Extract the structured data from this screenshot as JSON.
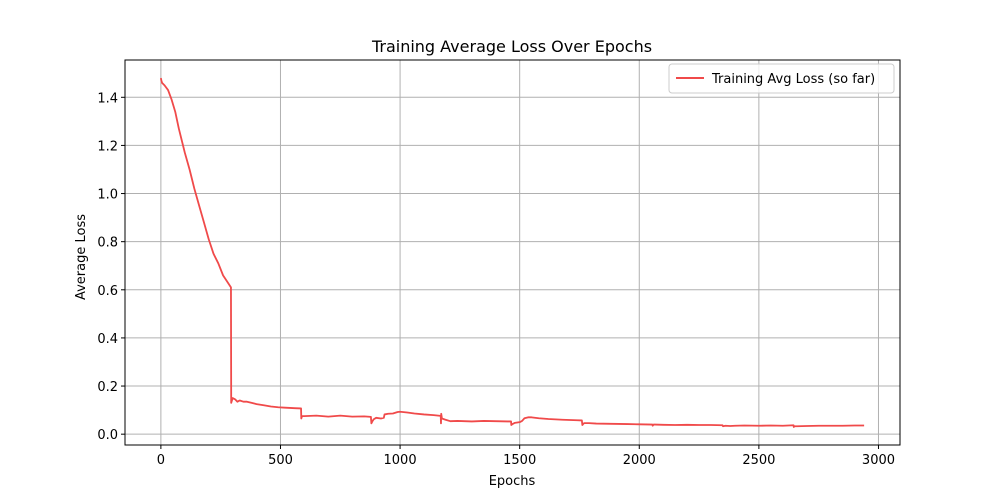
{
  "chart_data": {
    "type": "line",
    "title": "Training Average Loss Over Epochs",
    "xlabel": "Epochs",
    "ylabel": "Average Loss",
    "xlim": [
      -150,
      3090
    ],
    "ylim": [
      -0.045,
      1.555
    ],
    "xticks": [
      0,
      500,
      1000,
      1500,
      2000,
      2500,
      3000
    ],
    "yticks": [
      0.0,
      0.2,
      0.4,
      0.6,
      0.8,
      1.0,
      1.2,
      1.4
    ],
    "ytick_labels": [
      "0.0",
      "0.2",
      "0.4",
      "0.6",
      "0.8",
      "1.0",
      "1.2",
      "1.4"
    ],
    "grid": true,
    "legend_position": "top-right",
    "series": [
      {
        "name": "Training Avg Loss (so far)",
        "color": "#f04a4a",
        "x": [
          0,
          2,
          5,
          15,
          30,
          45,
          60,
          75,
          90,
          100,
          120,
          140,
          160,
          180,
          200,
          220,
          240,
          260,
          280,
          293,
          294,
          297,
          300,
          310,
          320,
          330,
          345,
          360,
          380,
          400,
          430,
          460,
          490,
          520,
          560,
          586,
          587,
          590,
          600,
          650,
          700,
          750,
          800,
          850,
          878,
          880,
          885,
          890,
          900,
          920,
          932,
          935,
          950,
          970,
          990,
          1000,
          1030,
          1060,
          1100,
          1140,
          1170,
          1171,
          1172,
          1174,
          1175,
          1190,
          1210,
          1240,
          1300,
          1350,
          1400,
          1450,
          1464,
          1465,
          1470,
          1480,
          1500,
          1510,
          1520,
          1535,
          1550,
          1580,
          1620,
          1680,
          1740,
          1760,
          1762,
          1766,
          1770,
          1790,
          1820,
          1880,
          1950,
          2000,
          2055,
          2056,
          2060,
          2065,
          2100,
          2150,
          2200,
          2250,
          2300,
          2348,
          2350,
          2360,
          2380,
          2400,
          2440,
          2500,
          2550,
          2600,
          2645,
          2646,
          2650,
          2660,
          2700,
          2750,
          2800,
          2850,
          2900,
          2940
        ],
        "y": [
          1.48,
          1.47,
          1.46,
          1.45,
          1.43,
          1.39,
          1.34,
          1.27,
          1.21,
          1.17,
          1.1,
          1.02,
          0.95,
          0.88,
          0.81,
          0.75,
          0.71,
          0.66,
          0.63,
          0.61,
          0.13,
          0.14,
          0.15,
          0.145,
          0.135,
          0.14,
          0.135,
          0.135,
          0.13,
          0.125,
          0.12,
          0.115,
          0.112,
          0.11,
          0.108,
          0.107,
          0.065,
          0.075,
          0.075,
          0.077,
          0.073,
          0.077,
          0.073,
          0.074,
          0.072,
          0.045,
          0.055,
          0.062,
          0.068,
          0.065,
          0.068,
          0.082,
          0.085,
          0.086,
          0.092,
          0.093,
          0.09,
          0.086,
          0.082,
          0.079,
          0.076,
          0.045,
          0.085,
          0.072,
          0.065,
          0.06,
          0.054,
          0.055,
          0.053,
          0.055,
          0.054,
          0.053,
          0.053,
          0.038,
          0.042,
          0.047,
          0.05,
          0.055,
          0.066,
          0.07,
          0.07,
          0.066,
          0.063,
          0.06,
          0.058,
          0.057,
          0.038,
          0.043,
          0.046,
          0.046,
          0.044,
          0.043,
          0.042,
          0.041,
          0.04,
          0.035,
          0.04,
          0.04,
          0.039,
          0.038,
          0.039,
          0.038,
          0.038,
          0.037,
          0.033,
          0.035,
          0.034,
          0.035,
          0.036,
          0.035,
          0.036,
          0.035,
          0.037,
          0.03,
          0.033,
          0.033,
          0.034,
          0.035,
          0.035,
          0.035,
          0.036,
          0.036
        ]
      }
    ]
  }
}
